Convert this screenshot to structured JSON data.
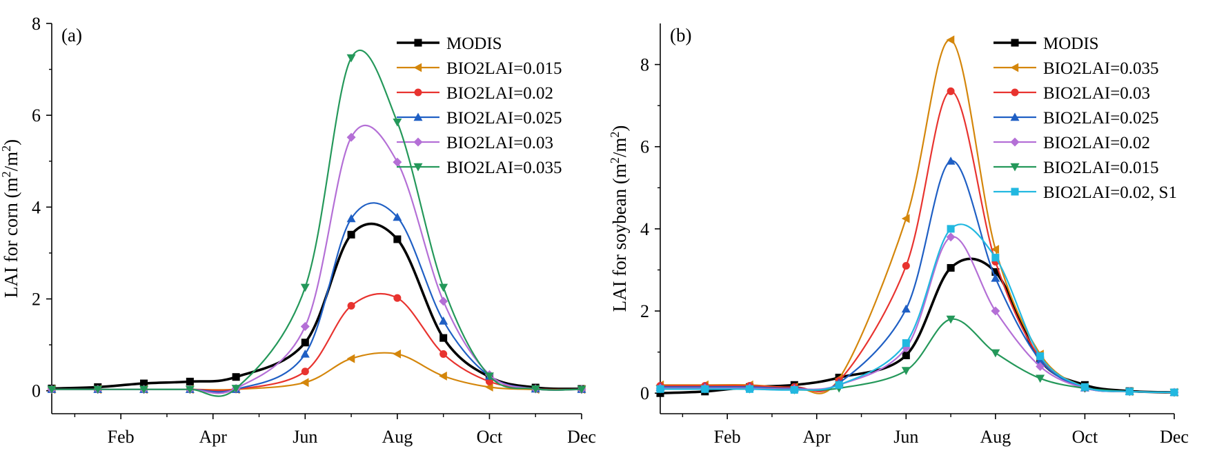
{
  "chart_data": [
    {
      "type": "line",
      "panel_label": "(a)",
      "ylabel": "LAI for corn (m²/m²)",
      "ylabel_parts": {
        "pre": "LAI for corn (m",
        "sup1": "2",
        "mid": "/m",
        "sup2": "2",
        "post": ")"
      },
      "xlim": [
        0.5,
        12
      ],
      "ylim": [
        -0.5,
        8
      ],
      "yticks": [
        0,
        2,
        4,
        6,
        8
      ],
      "xticks": [
        {
          "x": 2,
          "label": "Feb"
        },
        {
          "x": 4,
          "label": "Apr"
        },
        {
          "x": 6,
          "label": "Jun"
        },
        {
          "x": 8,
          "label": "Aug"
        },
        {
          "x": 10,
          "label": "Oct"
        },
        {
          "x": 12,
          "label": "Dec"
        }
      ],
      "grid": false,
      "legend_position": "top-right",
      "series": [
        {
          "name": "MODIS",
          "color": "#000000",
          "marker": "square",
          "x": [
            0.5,
            1.5,
            2.5,
            3.5,
            4.5,
            6.0,
            7.0,
            8.0,
            9.0,
            10.0,
            11.0,
            12.0
          ],
          "y": [
            0.05,
            0.08,
            0.16,
            0.2,
            0.3,
            1.05,
            3.4,
            3.3,
            1.15,
            0.3,
            0.07,
            0.04
          ]
        },
        {
          "name": "BIO2LAI=0.015",
          "color": "#d4860b",
          "marker": "triangle-left",
          "x": [
            0.5,
            1.5,
            2.5,
            3.5,
            4.5,
            6.0,
            7.0,
            8.0,
            9.0,
            10.0,
            11.0,
            12.0
          ],
          "y": [
            0.03,
            0.03,
            0.03,
            0.03,
            0.03,
            0.18,
            0.7,
            0.8,
            0.32,
            0.08,
            0.03,
            0.03
          ]
        },
        {
          "name": "BIO2LAI=0.02",
          "color": "#e8332f",
          "marker": "circle",
          "x": [
            0.5,
            1.5,
            2.5,
            3.5,
            4.5,
            6.0,
            7.0,
            8.0,
            9.0,
            10.0,
            11.0,
            12.0
          ],
          "y": [
            0.03,
            0.03,
            0.03,
            0.03,
            0.03,
            0.42,
            1.85,
            2.02,
            0.8,
            0.2,
            0.04,
            0.03
          ]
        },
        {
          "name": "BIO2LAI=0.025",
          "color": "#1f5fc4",
          "marker": "triangle-up",
          "x": [
            0.5,
            1.5,
            2.5,
            3.5,
            4.5,
            6.0,
            7.0,
            8.0,
            9.0,
            10.0,
            11.0,
            12.0
          ],
          "y": [
            0.03,
            0.03,
            0.03,
            0.03,
            0.03,
            0.8,
            3.75,
            3.78,
            1.52,
            0.32,
            0.04,
            0.03
          ]
        },
        {
          "name": "BIO2LAI=0.03",
          "color": "#b46fd6",
          "marker": "diamond",
          "x": [
            0.5,
            1.5,
            2.5,
            3.5,
            4.5,
            6.0,
            7.0,
            8.0,
            9.0,
            10.0,
            11.0,
            12.0
          ],
          "y": [
            0.03,
            0.03,
            0.03,
            0.03,
            0.05,
            1.4,
            5.52,
            4.98,
            1.95,
            0.35,
            0.04,
            0.03
          ]
        },
        {
          "name": "BIO2LAI=0.035",
          "color": "#24985a",
          "marker": "triangle-down",
          "x": [
            0.5,
            1.5,
            2.5,
            3.5,
            4.5,
            6.0,
            7.0,
            8.0,
            9.0,
            10.0,
            11.0,
            12.0
          ],
          "y": [
            0.03,
            0.03,
            0.03,
            0.03,
            0.05,
            2.25,
            7.25,
            5.85,
            2.25,
            0.32,
            0.04,
            0.03
          ]
        }
      ]
    },
    {
      "type": "line",
      "panel_label": "(b)",
      "ylabel": "LAI for soybean (m²/m²)",
      "ylabel_parts": {
        "pre": "LAI for soybean (m",
        "sup1": "2",
        "mid": "/m",
        "sup2": "2",
        "post": ")"
      },
      "xlim": [
        0.5,
        12
      ],
      "ylim": [
        -0.5,
        9
      ],
      "yticks": [
        0,
        2,
        4,
        6,
        8
      ],
      "xticks": [
        {
          "x": 2,
          "label": "Feb"
        },
        {
          "x": 4,
          "label": "Apr"
        },
        {
          "x": 6,
          "label": "Jun"
        },
        {
          "x": 8,
          "label": "Aug"
        },
        {
          "x": 10,
          "label": "Oct"
        },
        {
          "x": 12,
          "label": "Dec"
        }
      ],
      "grid": false,
      "legend_position": "top-right",
      "series": [
        {
          "name": "MODIS",
          "color": "#000000",
          "marker": "square",
          "x": [
            0.5,
            1.5,
            2.5,
            3.5,
            4.5,
            6.0,
            7.0,
            8.0,
            9.0,
            10.0,
            11.0,
            12.0
          ],
          "y": [
            0.0,
            0.04,
            0.15,
            0.2,
            0.38,
            0.92,
            3.05,
            2.95,
            0.8,
            0.2,
            0.05,
            0.02
          ]
        },
        {
          "name": "BIO2LAI=0.035",
          "color": "#d4860b",
          "marker": "triangle-left",
          "x": [
            0.5,
            1.5,
            2.5,
            3.5,
            4.5,
            6.0,
            7.0,
            8.0,
            9.0,
            10.0,
            11.0,
            12.0
          ],
          "y": [
            0.2,
            0.2,
            0.2,
            0.15,
            0.35,
            4.25,
            8.6,
            3.5,
            0.95,
            0.15,
            0.04,
            0.02
          ]
        },
        {
          "name": "BIO2LAI=0.03",
          "color": "#e8332f",
          "marker": "circle",
          "x": [
            0.5,
            1.5,
            2.5,
            3.5,
            4.5,
            6.0,
            7.0,
            8.0,
            9.0,
            10.0,
            11.0,
            12.0
          ],
          "y": [
            0.18,
            0.18,
            0.18,
            0.15,
            0.3,
            3.1,
            7.35,
            3.2,
            0.85,
            0.14,
            0.04,
            0.02
          ]
        },
        {
          "name": "BIO2LAI=0.025",
          "color": "#1f5fc4",
          "marker": "triangle-up",
          "x": [
            0.5,
            1.5,
            2.5,
            3.5,
            4.5,
            6.0,
            7.0,
            8.0,
            9.0,
            10.0,
            11.0,
            12.0
          ],
          "y": [
            0.15,
            0.15,
            0.15,
            0.12,
            0.25,
            2.05,
            5.65,
            2.8,
            0.8,
            0.13,
            0.04,
            0.02
          ]
        },
        {
          "name": "BIO2LAI=0.02",
          "color": "#b46fd6",
          "marker": "diamond",
          "x": [
            0.5,
            1.5,
            2.5,
            3.5,
            4.5,
            6.0,
            7.0,
            8.0,
            9.0,
            10.0,
            11.0,
            12.0
          ],
          "y": [
            0.12,
            0.12,
            0.12,
            0.1,
            0.2,
            1.1,
            3.8,
            2.0,
            0.65,
            0.12,
            0.04,
            0.02
          ]
        },
        {
          "name": "BIO2LAI=0.015",
          "color": "#24985a",
          "marker": "triangle-down",
          "x": [
            0.5,
            1.5,
            2.5,
            3.5,
            4.5,
            6.0,
            7.0,
            8.0,
            9.0,
            10.0,
            11.0,
            12.0
          ],
          "y": [
            0.1,
            0.1,
            0.1,
            0.08,
            0.12,
            0.55,
            1.8,
            0.98,
            0.36,
            0.12,
            0.04,
            0.02
          ]
        },
        {
          "name": "BIO2LAI=0.02, S1",
          "color": "#22b8e0",
          "marker": "square",
          "x": [
            0.5,
            1.5,
            2.5,
            3.5,
            4.5,
            6.0,
            7.0,
            8.0,
            9.0,
            10.0,
            11.0,
            12.0
          ],
          "y": [
            0.1,
            0.1,
            0.1,
            0.08,
            0.2,
            1.22,
            4.0,
            3.3,
            0.9,
            0.15,
            0.04,
            0.02
          ]
        }
      ]
    }
  ]
}
